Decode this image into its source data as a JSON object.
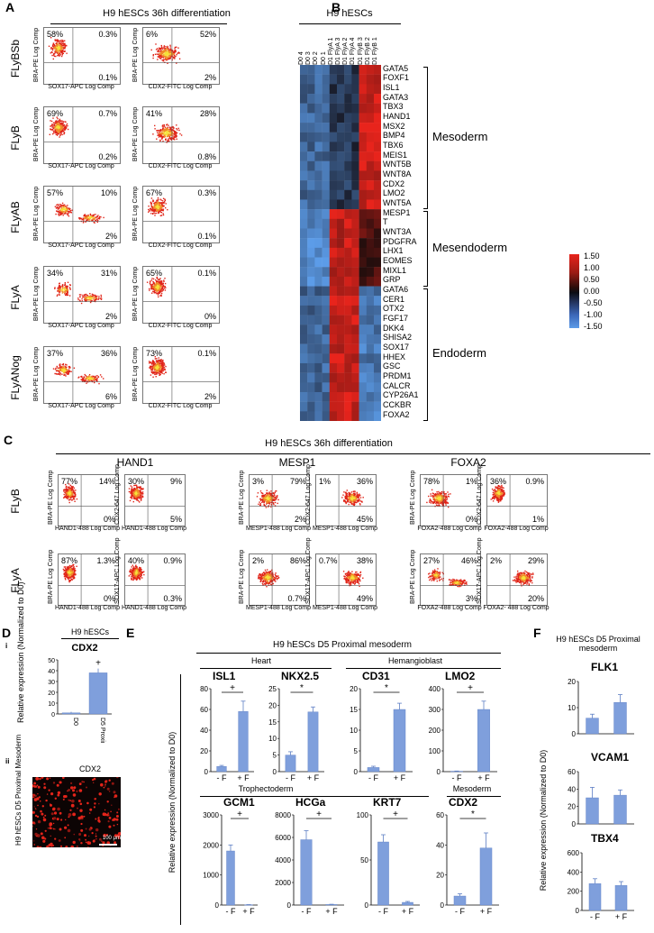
{
  "panelA": {
    "label": "A",
    "title": "H9 hESCs 36h differentiation",
    "rows": [
      {
        "name": "FLyBSb",
        "left": {
          "q": [
            "58%",
            "0.3%",
            "",
            "0.1%"
          ],
          "y": "BRA-PE Log Comp",
          "x": "SOX17-APC Log Comp"
        },
        "right": {
          "q": [
            "6%",
            "52%",
            "",
            "2%"
          ],
          "y": "BRA-PE Log Comp",
          "x": "CDX2-FITC Log Comp"
        }
      },
      {
        "name": "FLyB",
        "left": {
          "q": [
            "69%",
            "0.7%",
            "",
            "0.2%"
          ],
          "y": "BRA-PE Log Comp",
          "x": "SOX17-APC Log Comp"
        },
        "right": {
          "q": [
            "41%",
            "28%",
            "",
            "0.8%"
          ],
          "y": "BRA-PE Log Comp",
          "x": "CDX2-FITC Log Comp"
        }
      },
      {
        "name": "FLyAB",
        "left": {
          "q": [
            "57%",
            "10%",
            "",
            "2%"
          ],
          "y": "BRA-PE Log Comp",
          "x": "SOX17-APC Log Comp"
        },
        "right": {
          "q": [
            "67%",
            "0.3%",
            "",
            "0.1%"
          ],
          "y": "BRA-PE Log Comp",
          "x": "CDX2-FITC Log Comp"
        }
      },
      {
        "name": "FLyA",
        "left": {
          "q": [
            "34%",
            "31%",
            "",
            "2%"
          ],
          "y": "BRA-PE Log Comp",
          "x": "SOX17-APC Log Comp"
        },
        "right": {
          "q": [
            "65%",
            "0.1%",
            "",
            "0%"
          ],
          "y": "BRA-PE Log Comp",
          "x": "CDX2-FITC Log Comp"
        }
      },
      {
        "name": "FLyANog",
        "left": {
          "q": [
            "37%",
            "36%",
            "",
            "6%"
          ],
          "y": "BRA-PE Log Comp",
          "x": "SOX17-APC Log Comp"
        },
        "right": {
          "q": [
            "73%",
            "0.1%",
            "",
            "2%"
          ],
          "y": "BRA-PE Log Comp",
          "x": "CDX2-FITC Log Comp"
        }
      }
    ]
  },
  "panelB": {
    "label": "B",
    "title": "H9 hESCs",
    "columns": [
      "D0 4",
      "D0 3",
      "D0 2",
      "D0 1",
      "D1 FlyA 1",
      "D1 FlyA 3",
      "D1 FlyA 2",
      "D1 FlyA 4",
      "D1 FlyB 3",
      "D1 FlyB 2",
      "D1 FlyB 1"
    ],
    "genes": [
      "GATA5",
      "FOXF1",
      "ISL1",
      "GATA3",
      "TBX3",
      "HAND1",
      "MSX2",
      "BMP4",
      "TBX6",
      "MEIS1",
      "WNT5B",
      "WNT8A",
      "CDX2",
      "LMO2",
      "WNT5A",
      "MESP1",
      "T",
      "WNT3A",
      "PDGFRA",
      "LHX1",
      "EOMES",
      "MIXL1",
      "GRP",
      "GATA6",
      "CER1",
      "OTX2",
      "FGF17",
      "DKK4",
      "SHISA2",
      "SOX17",
      "HHEX",
      "GSC",
      "PRDM1",
      "CALCR",
      "CYP26A1",
      "CCKBR",
      "FOXA2"
    ],
    "groups": [
      "Mesoderm",
      "Mesendoderm",
      "Endoderm"
    ],
    "legend": [
      "1.50",
      "1.00",
      "0.50",
      "0.00",
      "-0.50",
      "-1.00",
      "-1.50"
    ]
  },
  "panelC": {
    "label": "C",
    "title": "H9 hESCs 36h differentiation",
    "markers": [
      "HAND1",
      "MESP1",
      "FOXA2"
    ],
    "rows": [
      {
        "name": "FLyB",
        "plots": [
          {
            "q": [
              "77%",
              "14%",
              "",
              "0%"
            ],
            "y": "BRA-PE Log Comp",
            "x": "HAND1-488 Log Comp"
          },
          {
            "q": [
              "30%",
              "9%",
              "",
              "5%"
            ],
            "y": "CDX2-647 Log Comp",
            "x": "HAND1-488 Log Comp"
          },
          {
            "q": [
              "3%",
              "79%",
              "",
              "2%"
            ],
            "y": "BRA-PE Log Comp",
            "x": "MESP1-488 Log Comp"
          },
          {
            "q": [
              "1%",
              "36%",
              "",
              "45%"
            ],
            "y": "CDX2-647 Log Comp",
            "x": "MESP1-488 Log Comp"
          },
          {
            "q": [
              "78%",
              "1%",
              "",
              "0%"
            ],
            "y": "BRA-PE Log Comp",
            "x": "FOXA2-488 Log Comp"
          },
          {
            "q": [
              "36%",
              "0.9%",
              "",
              "1%"
            ],
            "y": "CDX2-647 Log Comp",
            "x": "FOXA2-488 Log Comp"
          }
        ]
      },
      {
        "name": "FLyA",
        "plots": [
          {
            "q": [
              "87%",
              "1.3%",
              "",
              "0%"
            ],
            "y": "BRA-PE Log Comp",
            "x": "HAND1-488 Log Comp"
          },
          {
            "q": [
              "40%",
              "0.9%",
              "",
              "0.3%"
            ],
            "y": "SOX17-APC Log Comp",
            "x": "HAND1-488 Log Comp"
          },
          {
            "q": [
              "2%",
              "86%",
              "",
              "0.7%"
            ],
            "y": "BRA-PE Log Comp",
            "x": "MESP1-488 Log Comp"
          },
          {
            "q": [
              "0.7%",
              "38%",
              "",
              "49%"
            ],
            "y": "SOX17-APC Log Comp",
            "x": "MESP1-488 Log Comp"
          },
          {
            "q": [
              "27%",
              "46%",
              "",
              "3%"
            ],
            "y": "BRA-PE Log Comp",
            "x": "FOXA2-488 Log Comp"
          },
          {
            "q": [
              "2%",
              "29%",
              "",
              "20%"
            ],
            "y": "SOX17-APC Log Comp",
            "x": "FOXA2- 488 Log Comp"
          }
        ]
      }
    ]
  },
  "panelD": {
    "label": "D",
    "sub_i": "i",
    "sub_ii": "ii",
    "title": "H9 hESCs",
    "gene": "CDX2",
    "ylabel": "Relative expression (Normalized to D0)",
    "img_title": "CDX2",
    "img_side": "H9 hESCs D5 Proximal Mesoderm",
    "scale": "100 μm",
    "sig": "+"
  },
  "panelE": {
    "label": "E",
    "title": "H9 hESCs D5 Proximal mesoderm",
    "ylabel": "Relative expression (Normalized to D0)",
    "groups": [
      "Heart",
      "Hemangioblast",
      "Trophectoderm",
      "Mesoderm"
    ],
    "xcats": [
      "- F",
      "+ F"
    ]
  },
  "panelF": {
    "label": "F",
    "title": "H9 hESCs D5 Proximal mesoderm",
    "ylabel": "Relative expression (Normalized to D0)",
    "xcats": [
      "- F",
      "+ F"
    ]
  },
  "chart_data": [
    {
      "type": "bar",
      "title": "CDX2",
      "categories": [
        "D0",
        "D5 Proximal Mesoderm"
      ],
      "values": [
        1,
        38
      ],
      "ylim": [
        0,
        50
      ],
      "yticks": [
        0,
        10,
        20,
        30,
        40,
        50
      ],
      "errors": [
        1,
        4
      ]
    },
    {
      "type": "bar",
      "title": "ISL1",
      "categories": [
        "- F",
        "+ F"
      ],
      "values": [
        5,
        58
      ],
      "ylim": [
        0,
        80
      ],
      "yticks": [
        0,
        20,
        40,
        60,
        80
      ],
      "errors": [
        1,
        10
      ],
      "sig": "+"
    },
    {
      "type": "bar",
      "title": "NKX2.5",
      "categories": [
        "- F",
        "+ F"
      ],
      "values": [
        5,
        18
      ],
      "ylim": [
        0,
        25
      ],
      "yticks": [
        0,
        5,
        10,
        15,
        20,
        25
      ],
      "errors": [
        1,
        1.5
      ],
      "sig": "*"
    },
    {
      "type": "bar",
      "title": "CD31",
      "categories": [
        "- F",
        "+ F"
      ],
      "values": [
        1,
        15
      ],
      "ylim": [
        0,
        20
      ],
      "yticks": [
        0,
        5,
        10,
        15,
        20
      ],
      "errors": [
        0.3,
        1.5
      ],
      "sig": "*"
    },
    {
      "type": "bar",
      "title": "LMO2",
      "categories": [
        "- F",
        "+ F"
      ],
      "values": [
        2,
        300
      ],
      "ylim": [
        0,
        400
      ],
      "yticks": [
        0,
        100,
        200,
        300,
        400
      ],
      "errors": [
        1,
        40
      ],
      "sig": "+"
    },
    {
      "type": "bar",
      "title": "GCM1",
      "categories": [
        "- F",
        "+ F"
      ],
      "values": [
        1800,
        10
      ],
      "ylim": [
        0,
        3000
      ],
      "yticks": [
        0,
        1000,
        2000,
        3000
      ],
      "errors": [
        200,
        5
      ],
      "sig": "+"
    },
    {
      "type": "bar",
      "title": "HCGa",
      "categories": [
        "- F",
        "+ F"
      ],
      "values": [
        5800,
        50
      ],
      "ylim": [
        0,
        8000
      ],
      "yticks": [
        0,
        2000,
        4000,
        6000,
        8000
      ],
      "errors": [
        800,
        20
      ],
      "sig": "+"
    },
    {
      "type": "bar",
      "title": "KRT7",
      "categories": [
        "- F",
        "+ F"
      ],
      "values": [
        70,
        3
      ],
      "ylim": [
        0,
        100
      ],
      "yticks": [
        0,
        50,
        100
      ],
      "errors": [
        8,
        1
      ],
      "sig": "+"
    },
    {
      "type": "bar",
      "title": "CDX2",
      "categories": [
        "- F",
        "+ F"
      ],
      "values": [
        6,
        38
      ],
      "ylim": [
        0,
        60
      ],
      "yticks": [
        0,
        20,
        40,
        60
      ],
      "errors": [
        1.5,
        10
      ],
      "sig": "*"
    },
    {
      "type": "bar",
      "title": "FLK1",
      "categories": [
        "- F",
        "+ F"
      ],
      "values": [
        6,
        12
      ],
      "ylim": [
        0,
        20
      ],
      "yticks": [
        0,
        10,
        20
      ],
      "errors": [
        1.5,
        3
      ]
    },
    {
      "type": "bar",
      "title": "VCAM1",
      "categories": [
        "- F",
        "+ F"
      ],
      "values": [
        30,
        33
      ],
      "ylim": [
        0,
        60
      ],
      "yticks": [
        0,
        20,
        40,
        60
      ],
      "errors": [
        12,
        6
      ]
    },
    {
      "type": "bar",
      "title": "TBX4",
      "categories": [
        "- F",
        "+ F"
      ],
      "values": [
        280,
        260
      ],
      "ylim": [
        0,
        600
      ],
      "yticks": [
        0,
        200,
        400,
        600
      ],
      "errors": [
        50,
        40
      ]
    }
  ]
}
